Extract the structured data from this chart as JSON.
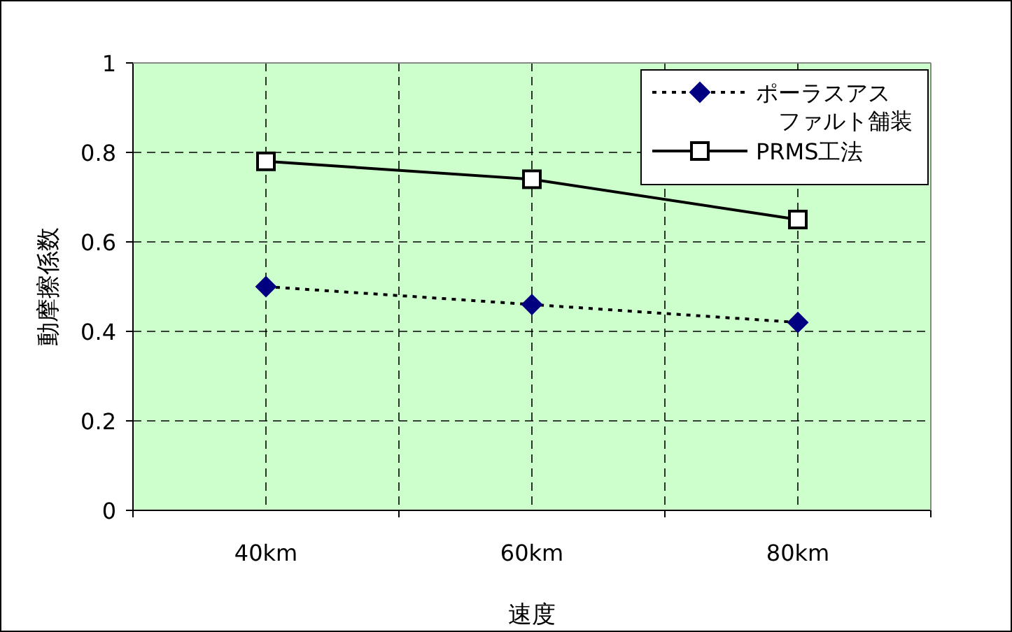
{
  "chart_data": {
    "type": "line",
    "xlabel": "速度",
    "ylabel": "動摩擦係数",
    "categories": [
      "40km",
      "60km",
      "80km"
    ],
    "series": [
      {
        "name": "ポーラスアスファルト舗装",
        "color": "#000080",
        "values": [
          0.5,
          0.46,
          0.42
        ],
        "marker": "diamond",
        "line_style": "dotted"
      },
      {
        "name": "PRMS工法",
        "color": "#000000",
        "values": [
          0.78,
          0.74,
          0.65
        ],
        "marker": "square",
        "line_style": "solid"
      }
    ],
    "ylim": [
      0,
      1
    ],
    "yticks": [
      0,
      0.2,
      0.4,
      0.6,
      0.8,
      1
    ],
    "grid": true,
    "legend": "top right"
  }
}
